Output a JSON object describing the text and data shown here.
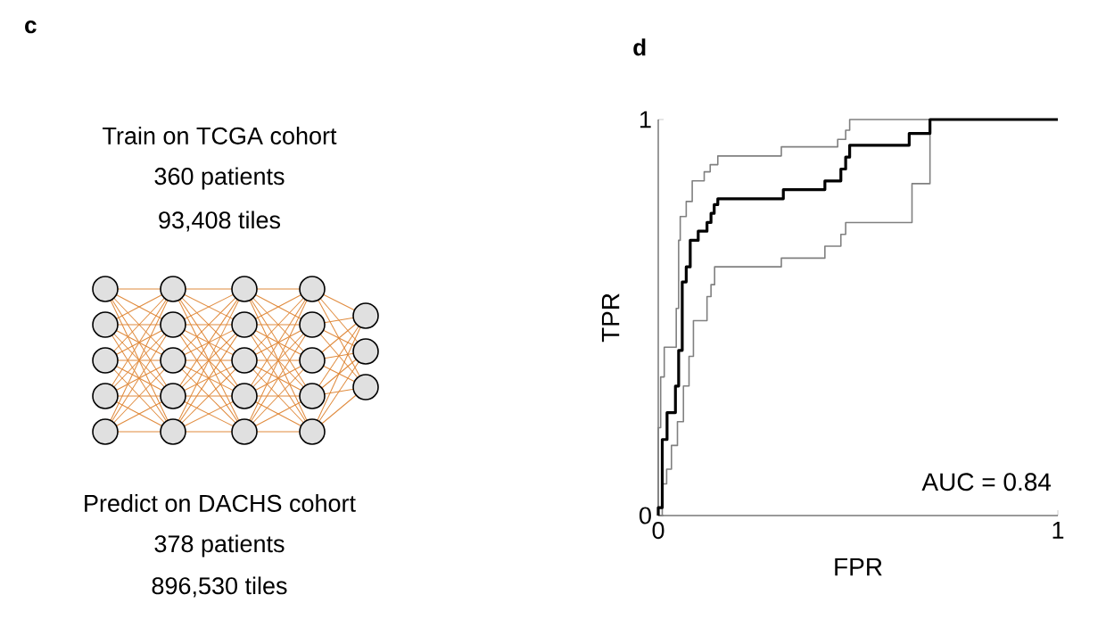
{
  "chart_data": [
    {
      "type": "other",
      "title": "c",
      "annotations": [
        "Train on TCGA cohort",
        "360 patients",
        "93,408 tiles",
        "Predict on DACHS cohort",
        "378 patients",
        "896,530 tiles"
      ]
    },
    {
      "type": "line",
      "title": "d",
      "xlabel": "FPR",
      "ylabel": "TPR",
      "xlim": [
        0,
        1
      ],
      "ylim": [
        0,
        1
      ],
      "xticks": [
        0,
        1
      ],
      "yticks": [
        0,
        1
      ],
      "annotations": [
        "AUC = 0.84"
      ],
      "series": [
        {
          "color": "#808080",
          "x": [
            0,
            0,
            0.006,
            0.006,
            0.015,
            0.015,
            0.045,
            0.045,
            0.051,
            0.051,
            0.055,
            0.055,
            0.07,
            0.07,
            0.085,
            0.085,
            0.115,
            0.115,
            0.13,
            0.13,
            0.149,
            0.149,
            0.308,
            0.308,
            0.449,
            0.449,
            0.469,
            0.469,
            0.479,
            0.479,
            1
          ],
          "values": [
            0,
            0.222,
            0.222,
            0.35,
            0.35,
            0.425,
            0.425,
            0.523,
            0.523,
            0.695,
            0.695,
            0.755,
            0.755,
            0.793,
            0.793,
            0.845,
            0.845,
            0.868,
            0.868,
            0.886,
            0.886,
            0.908,
            0.908,
            0.931,
            0.931,
            0.95,
            0.95,
            0.973,
            0.973,
            1,
            1
          ]
        },
        {
          "color": "#808080",
          "x": [
            0,
            0.01,
            0.01,
            0.021,
            0.021,
            0.033,
            0.033,
            0.048,
            0.048,
            0.063,
            0.063,
            0.077,
            0.077,
            0.088,
            0.088,
            0.122,
            0.122,
            0.132,
            0.132,
            0.141,
            0.141,
            0.308,
            0.308,
            0.417,
            0.417,
            0.457,
            0.457,
            0.469,
            0.469,
            0.635,
            0.635,
            0.68,
            0.68,
            1
          ],
          "values": [
            0,
            0,
            0.08,
            0.08,
            0.117,
            0.117,
            0.177,
            0.177,
            0.237,
            0.237,
            0.327,
            0.327,
            0.402,
            0.402,
            0.492,
            0.492,
            0.553,
            0.553,
            0.583,
            0.583,
            0.628,
            0.628,
            0.65,
            0.65,
            0.68,
            0.68,
            0.71,
            0.71,
            0.74,
            0.74,
            0.838,
            0.838,
            1,
            1
          ]
        },
        {
          "color": "#000000",
          "x": [
            0,
            0,
            0.01,
            0.01,
            0.022,
            0.022,
            0.043,
            0.043,
            0.051,
            0.051,
            0.06,
            0.06,
            0.07,
            0.07,
            0.08,
            0.08,
            0.1,
            0.1,
            0.122,
            0.122,
            0.132,
            0.132,
            0.14,
            0.14,
            0.149,
            0.149,
            0.313,
            0.313,
            0.417,
            0.417,
            0.457,
            0.457,
            0.469,
            0.469,
            0.479,
            0.479,
            0.628,
            0.628,
            0.68,
            0.68,
            1
          ],
          "values": [
            0,
            0.02,
            0.02,
            0.192,
            0.192,
            0.26,
            0.26,
            0.327,
            0.327,
            0.417,
            0.417,
            0.59,
            0.59,
            0.628,
            0.628,
            0.695,
            0.695,
            0.718,
            0.718,
            0.74,
            0.74,
            0.763,
            0.763,
            0.785,
            0.785,
            0.8,
            0.8,
            0.823,
            0.823,
            0.845,
            0.845,
            0.875,
            0.875,
            0.905,
            0.905,
            0.935,
            0.935,
            0.965,
            0.965,
            1,
            1
          ]
        }
      ]
    }
  ]
}
